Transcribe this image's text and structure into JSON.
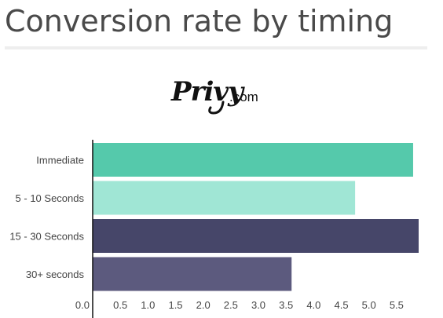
{
  "page": {
    "title": "Conversion rate by timing",
    "logo_text": "Privy",
    "logo_suffix": ".com"
  },
  "chart_data": {
    "type": "bar",
    "orientation": "horizontal",
    "categories": [
      "Immediate",
      "5 - 10 Seconds",
      "15 - 30 Seconds",
      "30+ seconds"
    ],
    "values": [
      5.8,
      4.75,
      5.9,
      3.6
    ],
    "colors": [
      "#55c9ab",
      "#a0e6d5",
      "#464669",
      "#5c5a7e"
    ],
    "xlim": [
      0,
      5.9
    ],
    "xticks": [
      "0.0",
      "0.5",
      "1.0",
      "1.5",
      "2.0",
      "2.5",
      "3.0",
      "3.5",
      "4.0",
      "4.5",
      "5.0",
      "5.5"
    ],
    "grid": false,
    "title": "",
    "xlabel": "",
    "ylabel": ""
  }
}
